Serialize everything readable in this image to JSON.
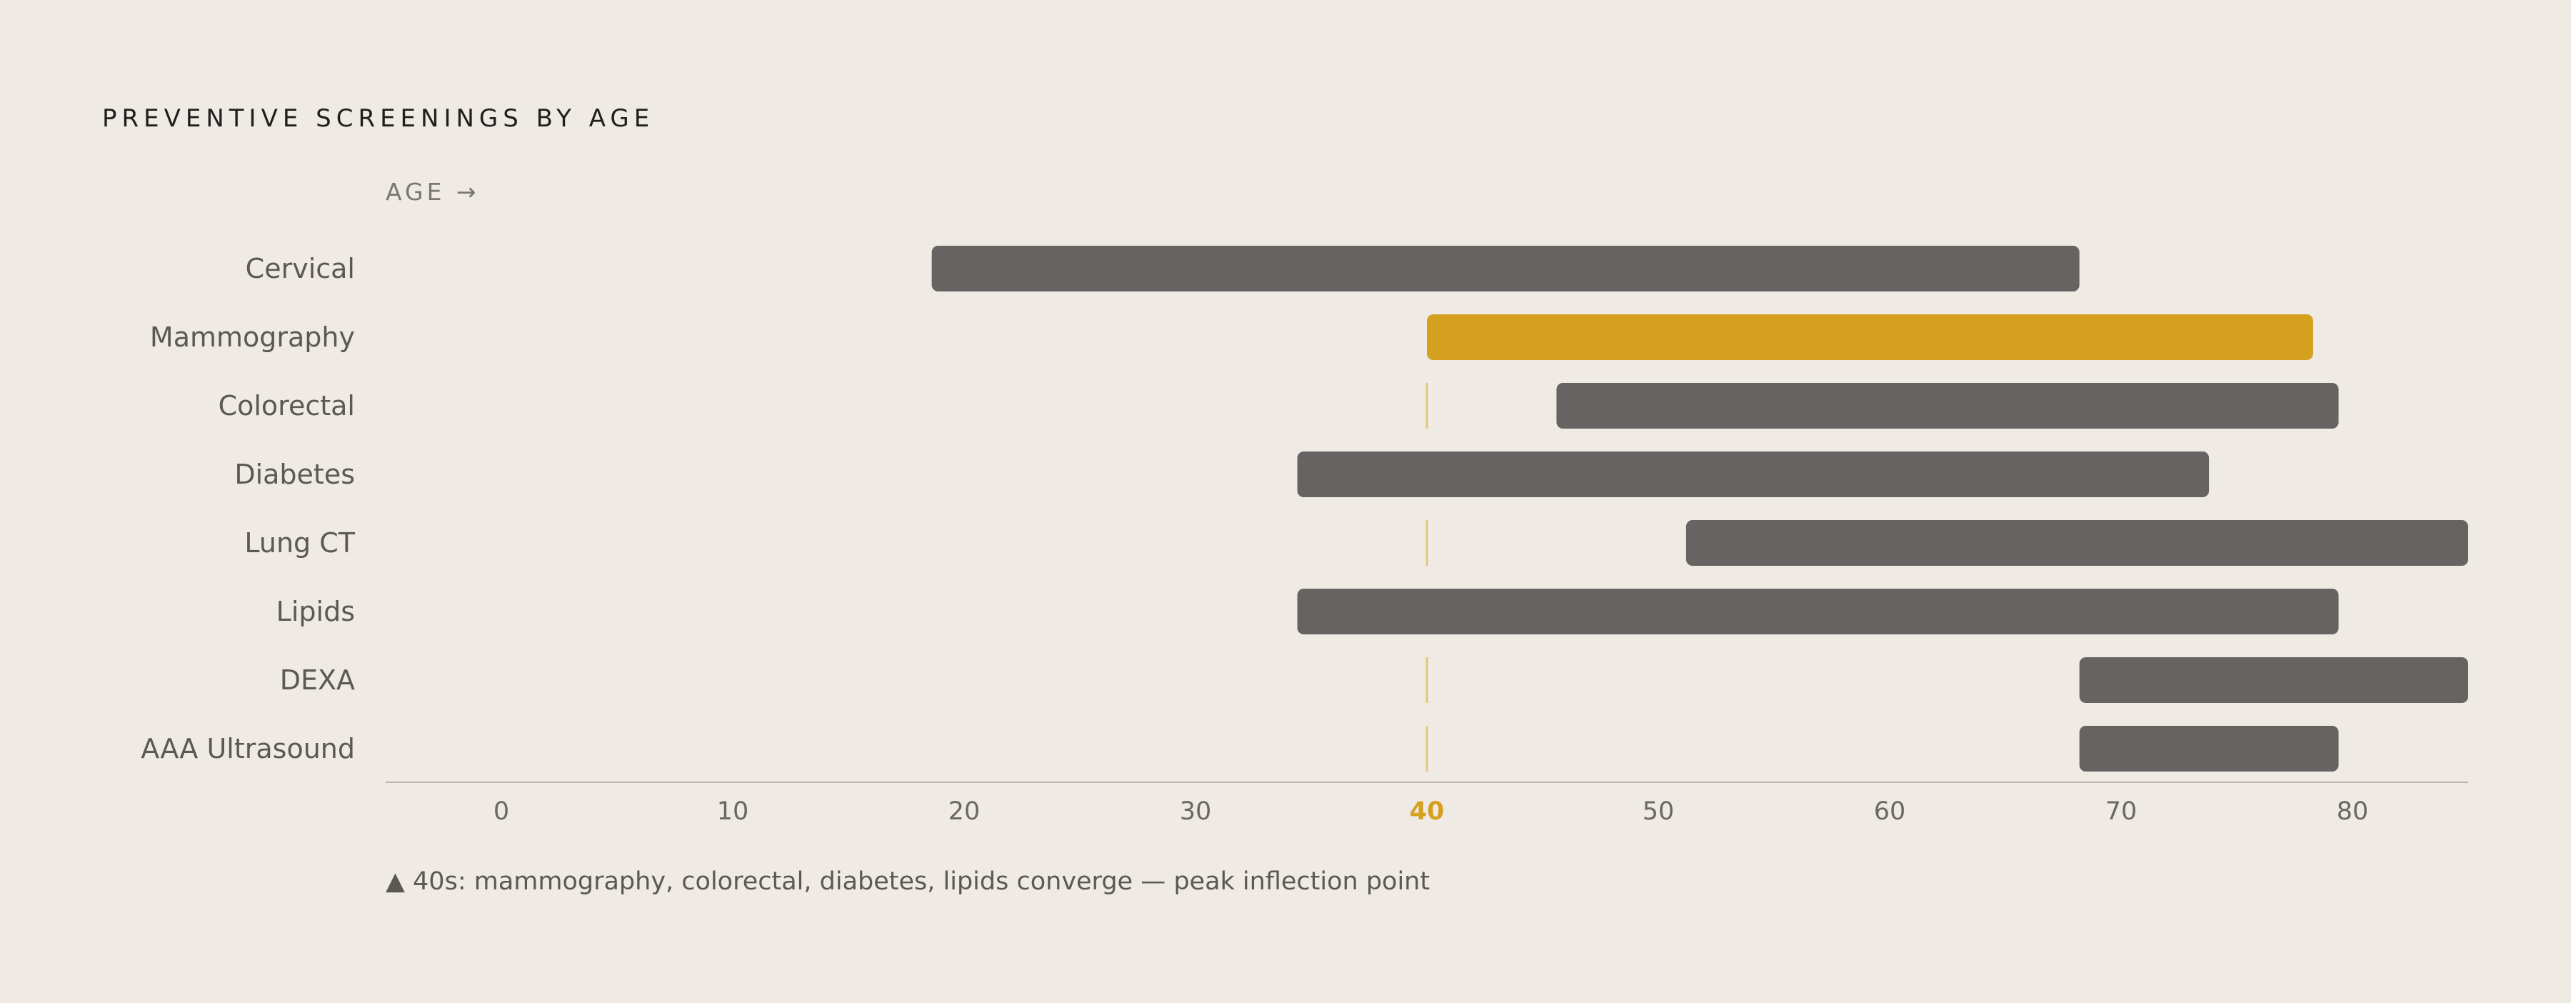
{
  "chart_data": {
    "type": "bar",
    "orientation": "horizontal-range",
    "title": "PREVENTIVE SCREENINGS BY AGE",
    "xlabel": "AGE →",
    "xlim": [
      -5,
      85
    ],
    "xticks": [
      0,
      10,
      20,
      30,
      40,
      50,
      60,
      70,
      80
    ],
    "highlight_tick": 40,
    "reference_line": 40,
    "categories": [
      "Cervical",
      "Mammography",
      "Colorectal",
      "Diabetes",
      "Lung CT",
      "Lipids",
      "DEXA",
      "AAA Ultrasound"
    ],
    "ranges": [
      {
        "label": "Cervical",
        "start": 18.6,
        "end": 68.2,
        "highlight": false
      },
      {
        "label": "Mammography",
        "start": 40,
        "end": 78.3,
        "highlight": true
      },
      {
        "label": "Colorectal",
        "start": 45.6,
        "end": 79.4,
        "highlight": false
      },
      {
        "label": "Diabetes",
        "start": 34.4,
        "end": 73.8,
        "highlight": false
      },
      {
        "label": "Lung CT",
        "start": 51.2,
        "end": 85,
        "highlight": false
      },
      {
        "label": "Lipids",
        "start": 34.4,
        "end": 79.4,
        "highlight": false
      },
      {
        "label": "DEXA",
        "start": 68.2,
        "end": 85,
        "highlight": false
      },
      {
        "label": "AAA Ultrasound",
        "start": 68.2,
        "end": 79.4,
        "highlight": false
      }
    ],
    "footnote": "▲ 40s: mammography, colorectal, diabetes, lipids converge — peak inflection point",
    "grid": false,
    "colors": {
      "background": "#efebe4",
      "bar": "#666462",
      "highlight": "#d4a01e",
      "reference_line": "#e3c77a",
      "axis": "#b9b5ae"
    }
  }
}
